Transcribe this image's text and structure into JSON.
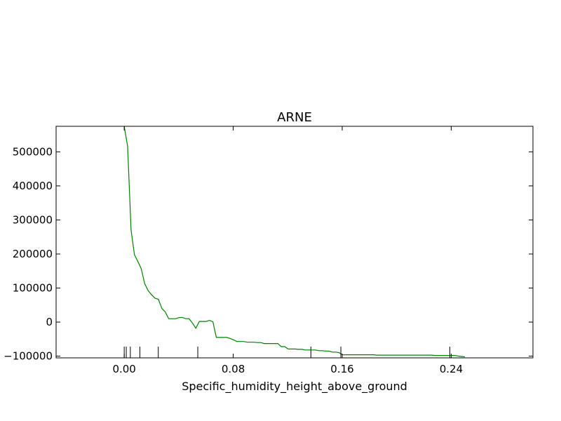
{
  "chart_data": {
    "type": "line",
    "title": "ARNE",
    "xlabel": "Specific_humidity_height_above_ground",
    "ylabel": "",
    "xlim": [
      -0.05,
      0.3
    ],
    "ylim": [
      -105000,
      575000
    ],
    "grid": false,
    "x_ticks": [
      {
        "value": 0.0,
        "label": "0.00"
      },
      {
        "value": 0.08,
        "label": "0.08"
      },
      {
        "value": 0.16,
        "label": "0.16"
      },
      {
        "value": 0.24,
        "label": "0.24"
      }
    ],
    "y_ticks": [
      {
        "value": -100000,
        "label": "−100000"
      },
      {
        "value": 0,
        "label": "0"
      },
      {
        "value": 100000,
        "label": "100000"
      },
      {
        "value": 200000,
        "label": "200000"
      },
      {
        "value": 300000,
        "label": "300000"
      },
      {
        "value": 400000,
        "label": "400000"
      },
      {
        "value": 500000,
        "label": "500000"
      }
    ],
    "series": [
      {
        "color": "#008000",
        "x": [
          0.0,
          0.0025,
          0.005,
          0.0075,
          0.01,
          0.0125,
          0.015,
          0.0175,
          0.0201,
          0.0226,
          0.0251,
          0.0276,
          0.0301,
          0.0326,
          0.0351,
          0.0376,
          0.0401,
          0.0426,
          0.0451,
          0.0476,
          0.0501,
          0.0526,
          0.0551,
          0.0576,
          0.0601,
          0.0626,
          0.0651,
          0.0676,
          0.0701,
          0.0727,
          0.0752,
          0.0777,
          0.0802,
          0.0827,
          0.0852,
          0.0877,
          0.0902,
          0.0927,
          0.0952,
          0.0977,
          0.1002,
          0.1027,
          0.1052,
          0.1077,
          0.1102,
          0.1127,
          0.1153,
          0.1178,
          0.1203,
          0.1228,
          0.1253,
          0.1278,
          0.1303,
          0.1328,
          0.1353,
          0.1378,
          0.1403,
          0.1428,
          0.1453,
          0.1478,
          0.1503,
          0.1528,
          0.1553,
          0.1578,
          0.1603,
          0.1629,
          0.1654,
          0.1679,
          0.1704,
          0.1729,
          0.1754,
          0.1779,
          0.1804,
          0.1829,
          0.1854,
          0.1879,
          0.1904,
          0.1929,
          0.1954,
          0.1979,
          0.2004,
          0.2029,
          0.2055,
          0.208,
          0.2105,
          0.213,
          0.2155,
          0.218,
          0.2205,
          0.223,
          0.2255,
          0.228,
          0.2305,
          0.233,
          0.2355,
          0.238,
          0.2405,
          0.243,
          0.2455,
          0.248,
          0.25
        ],
        "y": [
          575000,
          516000,
          270000,
          198000,
          178000,
          157000,
          113000,
          93000,
          80000,
          70000,
          67000,
          40000,
          30000,
          10000,
          10000,
          10000,
          13000,
          14000,
          10000,
          10000,
          -3000,
          -18000,
          2000,
          2000,
          2000,
          5000,
          1000,
          -45000,
          -45000,
          -45000,
          -45000,
          -48000,
          -52000,
          -57000,
          -57000,
          -57000,
          -59000,
          -59000,
          -59000,
          -60000,
          -60000,
          -63000,
          -63000,
          -63000,
          -63000,
          -63000,
          -72000,
          -72000,
          -79000,
          -79000,
          -79000,
          -80000,
          -80000,
          -82000,
          -82000,
          -82000,
          -82000,
          -84000,
          -84000,
          -85000,
          -85000,
          -88000,
          -88000,
          -90000,
          -96000,
          -96000,
          -96000,
          -96000,
          -96000,
          -96000,
          -96000,
          -96000,
          -96000,
          -96000,
          -97000,
          -97000,
          -97000,
          -97000,
          -97000,
          -97000,
          -97000,
          -97000,
          -97000,
          -97000,
          -97000,
          -97000,
          -97000,
          -97000,
          -97000,
          -97000,
          -97000,
          -98000,
          -98000,
          -98000,
          -98000,
          -98000,
          -98000,
          -98000,
          -100000,
          -101000,
          -102000
        ]
      }
    ],
    "rug_x": [
      0.0,
      0.0015,
      0.0045,
      0.0115,
      0.025,
      0.054,
      0.137,
      0.159,
      0.239
    ]
  }
}
